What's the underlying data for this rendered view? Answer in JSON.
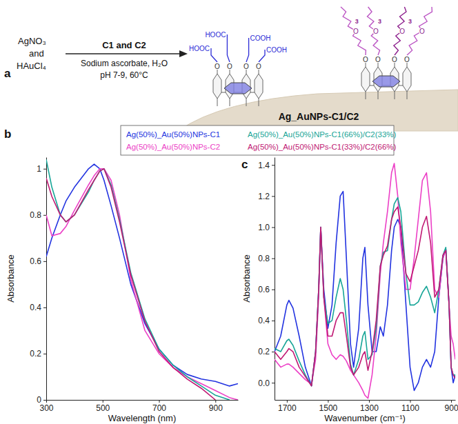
{
  "scheme": {
    "label": "a",
    "reactants": [
      "AgNO₃",
      "and",
      "HAuCl₄"
    ],
    "reagent": "C1 and C2",
    "conditions": [
      "Sodium ascorbate, H₂O",
      "pH 7-9, 60°C"
    ],
    "product": "Ag_AuNPs-C1/C2",
    "structure_labels": {
      "carboxyl": [
        "HOOC",
        "HOOC",
        "COOH",
        "COOH"
      ],
      "oxygen": [
        "O",
        "O",
        "O",
        "O",
        "O",
        "O",
        "O",
        "O",
        "O",
        "O",
        "O",
        "O"
      ],
      "repeat": [
        "3",
        "3",
        "3"
      ]
    }
  },
  "chart_data": [
    {
      "type": "line",
      "title": "b",
      "xlabel": "Wavelength (nm)",
      "ylabel": "Absorbance",
      "legend": "top",
      "x": [
        300,
        320,
        350,
        370,
        400,
        450,
        470,
        490,
        505,
        530,
        560,
        600,
        650,
        700,
        750,
        800,
        850,
        900,
        950,
        980
      ],
      "xlim": [
        300,
        980
      ],
      "xticks": [
        300,
        500,
        700,
        900
      ],
      "ylim": [
        0,
        1.05
      ],
      "yticks": [
        0,
        0.2,
        0.4,
        0.6,
        0.8,
        1
      ],
      "series": [
        {
          "name": "Ag(50%)_Au(50%)NPs-C1",
          "color": "#2233e0",
          "values": [
            0.62,
            0.7,
            0.8,
            0.86,
            0.92,
            1.0,
            1.02,
            1.0,
            0.95,
            0.84,
            0.7,
            0.5,
            0.33,
            0.22,
            0.15,
            0.11,
            0.09,
            0.08,
            0.06,
            0.07
          ]
        },
        {
          "name": "Ag(50%)_Au(50%)NPs-C2",
          "color": "#ec3fc6",
          "values": [
            0.8,
            0.71,
            0.72,
            0.75,
            0.82,
            0.93,
            0.97,
            1.0,
            1.0,
            0.95,
            0.8,
            0.52,
            0.3,
            0.2,
            0.14,
            0.1,
            0.07,
            0.04,
            0.01,
            0
          ]
        },
        {
          "name": "Ag(50%)_Au(50%)NPs-C1(66%)/C2(33%)",
          "color": "#17a597",
          "values": [
            1.04,
            0.92,
            0.8,
            0.77,
            0.8,
            0.9,
            0.95,
            0.99,
            1.0,
            0.93,
            0.78,
            0.55,
            0.35,
            0.22,
            0.15,
            0.1,
            0.06,
            0.02,
            0,
            null
          ]
        },
        {
          "name": "Ag(50%)_Au(50%)NPs-C1(33%)/C2(66%)",
          "color": "#c01873",
          "values": [
            0.96,
            0.88,
            0.8,
            0.77,
            0.8,
            0.91,
            0.95,
            0.99,
            1.0,
            0.92,
            0.77,
            0.54,
            0.34,
            0.21,
            0.14,
            0.09,
            0.05,
            0,
            null,
            null
          ]
        }
      ]
    },
    {
      "type": "line",
      "title": "c",
      "xlabel": "Wavenumber (cm⁻¹)",
      "ylabel": "Absorbance",
      "x": [
        1760,
        1730,
        1700,
        1690,
        1670,
        1640,
        1610,
        1580,
        1560,
        1545,
        1535,
        1520,
        1500,
        1480,
        1460,
        1440,
        1426,
        1410,
        1390,
        1375,
        1350,
        1330,
        1320,
        1305,
        1285,
        1265,
        1245,
        1230,
        1210,
        1190,
        1177,
        1160,
        1145,
        1120,
        1100,
        1080,
        1060,
        1040,
        1020,
        1000,
        980,
        960,
        940,
        926,
        910,
        900,
        890,
        880
      ],
      "xlim": [
        1760,
        880
      ],
      "xticks": [
        1700,
        1500,
        1300,
        1100,
        900
      ],
      "ylim": [
        -0.11,
        1.45
      ],
      "yticks": [
        {
          "value": 0,
          "label": "0.0"
        },
        0.2,
        0.4,
        0.6,
        0.8,
        {
          "value": 1,
          "label": "1.0"
        },
        1.2,
        1.4
      ],
      "series": [
        {
          "color": "#2233e0",
          "values": [
            0.2,
            0.3,
            0.5,
            0.53,
            0.48,
            0.3,
            0.1,
            -0.02,
            0.2,
            0.6,
            1.0,
            0.6,
            0.35,
            0.5,
            0.9,
            1.2,
            1.23,
            0.8,
            0.25,
            0.1,
            0.35,
            0.8,
            0.87,
            0.5,
            0.2,
            0.2,
            0.36,
            0.3,
            0.5,
            0.85,
            1.0,
            1.05,
            1.0,
            0.5,
            0.1,
            -0.05,
            0,
            0.1,
            0.15,
            0.1,
            0.2,
            0.55,
            0.8,
            0.86,
            0.5,
            0.1,
            0,
            0.05
          ]
        },
        {
          "color": "#ec3fc6",
          "values": [
            0.15,
            0.1,
            0.12,
            0.12,
            0.1,
            0.06,
            0.02,
            -0.01,
            0.15,
            0.55,
            1.0,
            0.55,
            0.25,
            0.18,
            0.15,
            0.18,
            0.17,
            0.14,
            0.08,
            0.05,
            0,
            -0.05,
            -0.08,
            -0.1,
            0.05,
            0.3,
            0.7,
            0.9,
            1.1,
            1.35,
            1.41,
            1.2,
            0.9,
            0.6,
            0.6,
            0.8,
            1.05,
            1.3,
            1.35,
            1.1,
            0.6,
            0.55,
            0.8,
            0.86,
            0.5,
            0.3,
            0.25,
            0.15
          ]
        },
        {
          "color": "#17a597",
          "values": [
            0.22,
            0.2,
            0.27,
            0.28,
            0.24,
            0.14,
            0.05,
            -0.02,
            0.2,
            0.6,
            1.0,
            0.55,
            0.38,
            0.4,
            0.55,
            0.67,
            0.6,
            0.4,
            0.12,
            0.05,
            0.15,
            0.3,
            0.33,
            0.15,
            0.18,
            0.35,
            0.75,
            0.84,
            0.85,
            1.05,
            1.15,
            1.19,
            1.1,
            0.7,
            0.5,
            0.5,
            0.52,
            0.58,
            0.62,
            0.55,
            0.45,
            0.6,
            0.82,
            0.87,
            0.5,
            0.1,
            0.05,
            0.05
          ]
        },
        {
          "color": "#c01873",
          "values": [
            0.2,
            0.15,
            0.2,
            0.22,
            0.2,
            0.1,
            0.04,
            -0.02,
            0.2,
            0.6,
            1.0,
            0.55,
            0.3,
            0.3,
            0.4,
            0.45,
            0.45,
            0.3,
            0.1,
            0.05,
            0.1,
            0.18,
            0.2,
            0.08,
            0.2,
            0.4,
            0.75,
            0.82,
            0.88,
            1.05,
            1.1,
            1.13,
            1.0,
            0.7,
            0.65,
            0.75,
            0.85,
            1.0,
            1.07,
            0.9,
            0.55,
            0.6,
            0.82,
            0.85,
            0.5,
            0.1,
            0.05,
            0.03
          ]
        }
      ]
    }
  ]
}
